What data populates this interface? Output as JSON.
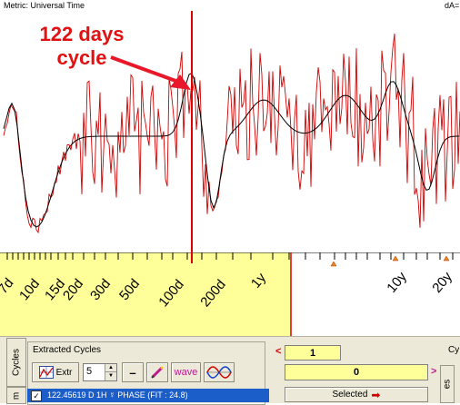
{
  "chart": {
    "metric_label": "Metric: Universal Time",
    "da_label": "dA=",
    "annotation": [
      "122 days",
      "cycle"
    ],
    "colors": {
      "raw": "#d40000",
      "smooth": "#000000",
      "marker": "#e00000",
      "arrow": "#e8182a",
      "green_ticks": "#22c22a",
      "axis_bg": "#ffff99"
    }
  },
  "axis": {
    "period_labels": [
      "7d",
      "10d",
      "15d",
      "20d",
      "30d",
      "50d",
      "100d",
      "200d",
      "1y",
      "10y",
      "20y"
    ]
  },
  "panel": {
    "tab_cycles": "Cycles",
    "tab_m": "m",
    "group_label": "Extracted Cycles",
    "extr_label": "Extr",
    "spin_value": "5",
    "minus_label": "–",
    "wave_label": "wave",
    "row_text": "122.45619 D 1H ☿ PHASE  (FIT : 24.8)",
    "row_checked": true,
    "field_top": "1",
    "field_bottom": "0",
    "selected_label": "Selected",
    "nav_left": "<",
    "nav_right": ">",
    "right_tab": "es",
    "right_group": "Cy"
  }
}
